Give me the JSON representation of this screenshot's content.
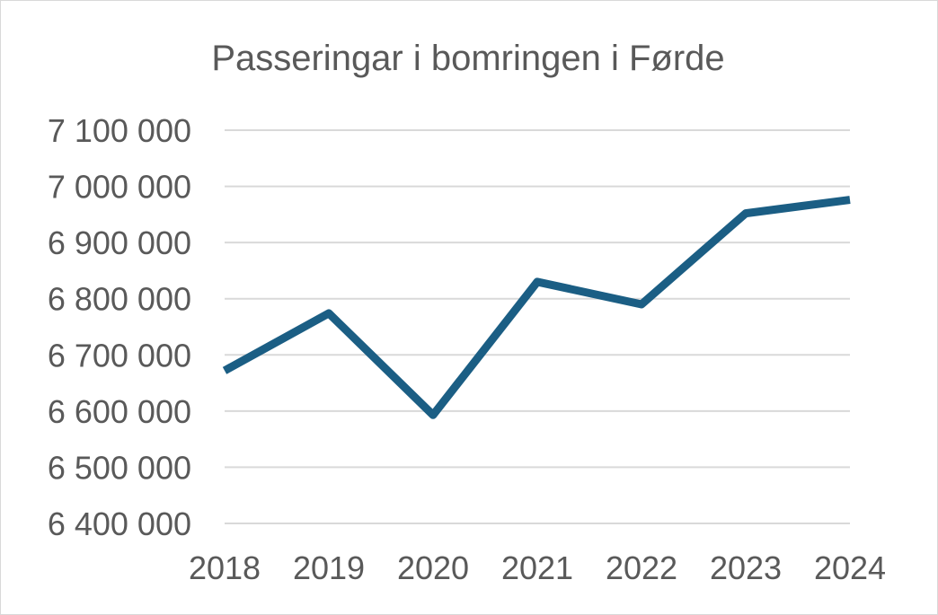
{
  "chart_data": {
    "type": "line",
    "title": "Passeringar i bomringen i Førde",
    "xlabel": "",
    "ylabel": "",
    "x": [
      "2018",
      "2019",
      "2020",
      "2021",
      "2022",
      "2023",
      "2024"
    ],
    "series": [
      {
        "values": [
          6672000,
          6774000,
          6593000,
          6830000,
          6790000,
          6952000,
          6976000
        ],
        "color": "#1b5e84"
      }
    ],
    "ylim": [
      6400000,
      7100000
    ],
    "yticks": [
      6400000,
      6500000,
      6600000,
      6700000,
      6800000,
      6900000,
      7000000,
      7100000
    ],
    "ytick_labels": [
      "6 400 000",
      "6 500 000",
      "6 600 000",
      "6 700 000",
      "6 800 000",
      "6 900 000",
      "7 000 000",
      "7 100 000"
    ],
    "grid": true,
    "legend": "none"
  }
}
